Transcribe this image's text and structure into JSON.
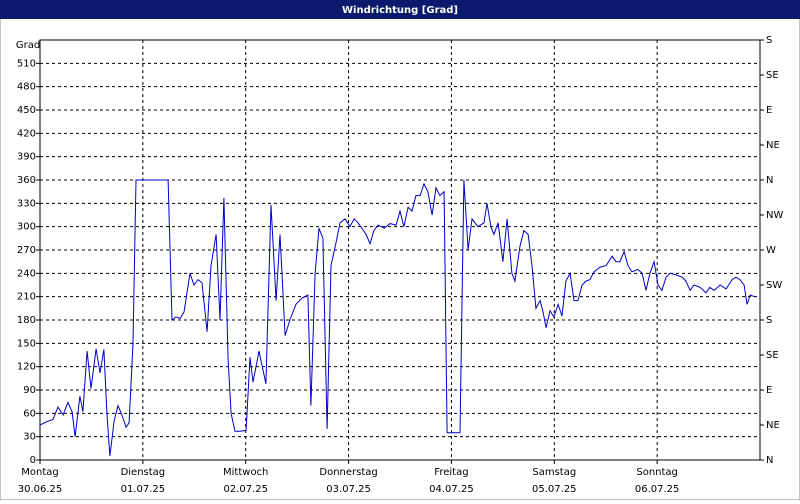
{
  "chart_data": {
    "type": "line",
    "title": "Windrichtung [Grad]",
    "ylabel": "Grad",
    "xlim": [
      0,
      168
    ],
    "xticks": [
      {
        "value": 0,
        "label": [
          "Montag",
          "30.06.25"
        ]
      },
      {
        "value": 24,
        "label": [
          "Dienstag",
          "01.07.25"
        ]
      },
      {
        "value": 48,
        "label": [
          "Mittwoch",
          "02.07.25"
        ]
      },
      {
        "value": 72,
        "label": [
          "Donnerstag",
          "03.07.25"
        ]
      },
      {
        "value": 96,
        "label": [
          "Freitag",
          "04.07.25"
        ]
      },
      {
        "value": 120,
        "label": [
          "Samstag",
          "05.07.25"
        ]
      },
      {
        "value": 144,
        "label": [
          "Sonntag",
          "06.07.25"
        ]
      }
    ],
    "ylim": [
      0,
      540
    ],
    "yticks": [
      0,
      30,
      60,
      90,
      120,
      150,
      180,
      210,
      240,
      270,
      300,
      330,
      360,
      390,
      420,
      450,
      480,
      510
    ],
    "y2lim": [
      0,
      540
    ],
    "y2ticks": [
      {
        "value": 0,
        "label": "N"
      },
      {
        "value": 45,
        "label": "NE"
      },
      {
        "value": 90,
        "label": "E"
      },
      {
        "value": 135,
        "label": "SE"
      },
      {
        "value": 180,
        "label": "S"
      },
      {
        "value": 225,
        "label": "SW"
      },
      {
        "value": 270,
        "label": "W"
      },
      {
        "value": 315,
        "label": "NW"
      },
      {
        "value": 360,
        "label": "N"
      },
      {
        "value": 405,
        "label": "NE"
      },
      {
        "value": 450,
        "label": "E"
      },
      {
        "value": 495,
        "label": "SE"
      },
      {
        "value": 540,
        "label": "S"
      }
    ],
    "grid": true,
    "color": "#0000c8",
    "x": [
      0,
      1.9,
      3.0,
      4.2,
      5.4,
      6.5,
      7.5,
      8.2,
      9.3,
      10.0,
      11.0,
      11.9,
      13.1,
      14.0,
      14.9,
      15.6,
      16.3,
      17.3,
      18.2,
      19.1,
      20.1,
      20.8,
      21.7,
      22.4,
      29.9,
      30.8,
      31.7,
      32.7,
      33.6,
      35.0,
      35.9,
      36.9,
      37.8,
      39.0,
      39.9,
      41.1,
      42.0,
      42.9,
      43.9,
      44.6,
      45.5,
      46.7,
      48.1,
      49.0,
      49.7,
      51.1,
      52.7,
      53.9,
      55.1,
      56.0,
      57.2,
      58.3,
      59.7,
      61.1,
      62.5,
      63.2,
      64.2,
      65.1,
      66.0,
      67.0,
      67.9,
      69.1,
      70.0,
      71.2,
      72.3,
      73.3,
      74.2,
      75.1,
      76.1,
      77.0,
      77.9,
      78.9,
      80.3,
      81.7,
      83.1,
      84.0,
      84.9,
      85.9,
      86.8,
      87.7,
      88.7,
      89.6,
      90.5,
      91.5,
      92.4,
      93.3,
      94.3,
      95.0,
      98.0,
      98.9,
      99.9,
      100.8,
      102.2,
      103.6,
      104.3,
      105.2,
      105.9,
      106.9,
      108.0,
      109.0,
      110.1,
      110.8,
      112.0,
      112.9,
      113.9,
      114.8,
      115.7,
      116.7,
      117.4,
      118.1,
      119.0,
      119.9,
      120.9,
      121.8,
      122.7,
      123.7,
      124.6,
      125.5,
      126.5,
      127.4,
      128.3,
      129.3,
      130.7,
      132.1,
      133.5,
      134.4,
      135.3,
      136.3,
      137.2,
      138.1,
      139.5,
      140.5,
      141.4,
      142.3,
      143.3,
      144.2,
      145.1,
      146.1,
      147.0,
      148.4,
      149.8,
      150.7,
      151.7,
      152.6,
      154.0,
      155.4,
      156.3,
      157.3,
      158.7,
      160.1,
      161.5,
      162.4,
      163.3,
      164.3,
      165.0,
      165.7,
      166.8
    ],
    "values": [
      45,
      50,
      52,
      68,
      58,
      74,
      62,
      30,
      82,
      62,
      140,
      92,
      143,
      112,
      142,
      60,
      5,
      50,
      70,
      58,
      42,
      48,
      150,
      360,
      360,
      180,
      184,
      182,
      190,
      240,
      225,
      232,
      228,
      165,
      250,
      290,
      180,
      337,
      130,
      60,
      37,
      37,
      38,
      132,
      100,
      140,
      98,
      328,
      205,
      290,
      160,
      180,
      200,
      208,
      212,
      70,
      240,
      298,
      285,
      40,
      250,
      280,
      305,
      310,
      300,
      310,
      305,
      298,
      290,
      278,
      295,
      302,
      298,
      304,
      302,
      320,
      300,
      325,
      320,
      340,
      340,
      355,
      345,
      315,
      350,
      340,
      345,
      35,
      35,
      360,
      270,
      310,
      300,
      305,
      330,
      300,
      290,
      305,
      255,
      310,
      240,
      230,
      275,
      295,
      290,
      250,
      195,
      205,
      190,
      170,
      192,
      184,
      200,
      185,
      230,
      240,
      205,
      205,
      225,
      230,
      232,
      242,
      248,
      250,
      262,
      255,
      255,
      268,
      250,
      242,
      245,
      240,
      218,
      240,
      255,
      225,
      218,
      235,
      240,
      238,
      235,
      230,
      218,
      225,
      222,
      215,
      222,
      218,
      225,
      220,
      232,
      235,
      232,
      225,
      200,
      212,
      210
    ]
  }
}
